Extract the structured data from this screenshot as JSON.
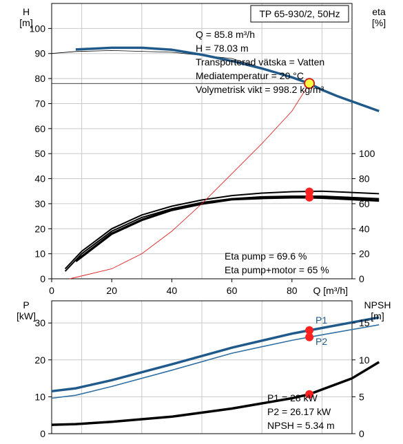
{
  "colors": {
    "head_curve": "#1f5a8a",
    "power_curve_p1": "#1f5a8a",
    "power_curve_p2": "#2f6fa3",
    "efficiency_curve": "#000000",
    "npsh_curve": "#000000",
    "system_curve": "#e02020",
    "marker_red": "#ff2020",
    "marker_yellow": "#ffff44",
    "grid": "#c8c8c8"
  },
  "chart_data": [
    {
      "type": "line",
      "id": "head_efficiency",
      "title_box": "TP 65-930/2, 50Hz",
      "xlabel": "Q [m³/h]",
      "ylabel_left": [
        "H",
        "[m]"
      ],
      "ylabel_right": [
        "eta",
        "[%]"
      ],
      "xlim": [
        0,
        100
      ],
      "ylim_left": [
        0,
        110
      ],
      "ylim_right": [
        0,
        220
      ],
      "xticks": [
        0,
        20,
        40,
        60,
        80
      ],
      "yticks_left": [
        0,
        10,
        20,
        30,
        40,
        50,
        60,
        70,
        80,
        90,
        100
      ],
      "yticks_right": [
        0,
        20,
        40,
        60,
        80,
        100
      ],
      "grid": true,
      "series": [
        {
          "key": "head_thin",
          "axis": "left",
          "x": [
            0,
            8,
            20,
            40,
            60,
            80,
            85.8
          ],
          "y": [
            90,
            90.8,
            91.2,
            90.5,
            88,
            80.5,
            78
          ]
        },
        {
          "key": "head",
          "axis": "left",
          "x": [
            8,
            20,
            30,
            40,
            50,
            60,
            70,
            80,
            85.8,
            90,
            95,
            109
          ],
          "y": [
            91.6,
            92.3,
            92.3,
            91.5,
            89.5,
            87,
            84,
            80.5,
            78.03,
            75.5,
            73,
            67
          ]
        },
        {
          "key": "eta_pump_outer",
          "axis": "right",
          "x": [
            4.5,
            10,
            20,
            30,
            40,
            50,
            60,
            70,
            80,
            90,
            109
          ],
          "y": [
            8,
            22,
            40,
            51,
            58,
            63,
            66.5,
            68.5,
            69.6,
            70,
            68
          ]
        },
        {
          "key": "eta_pump_inner",
          "axis": "right",
          "x": [
            4.5,
            10,
            20,
            30,
            40,
            50,
            60,
            70,
            80,
            90,
            109
          ],
          "y": [
            6,
            20,
            38,
            49,
            56,
            61,
            64,
            65.5,
            66,
            66,
            64
          ]
        },
        {
          "key": "eta_total",
          "axis": "right",
          "x": [
            8,
            20,
            30,
            40,
            50,
            60,
            70,
            80,
            85.8,
            90,
            109
          ],
          "y": [
            14,
            36,
            47,
            55,
            60,
            63.5,
            64.5,
            65,
            65,
            64.8,
            62.5
          ]
        },
        {
          "key": "system_curve",
          "axis": "left",
          "x": [
            6,
            20,
            30,
            40,
            50,
            60,
            70,
            80,
            85.8
          ],
          "y": [
            0,
            4,
            10,
            19,
            30,
            42,
            54,
            67,
            78
          ]
        }
      ],
      "operating_point": {
        "x": 85.8,
        "y": 78.03
      },
      "eta_markers": [
        {
          "x": 85.8,
          "y": 69.6
        },
        {
          "x": 85.8,
          "y": 65
        }
      ],
      "info_lines": [
        "Q = 85.8 m³/h",
        "H = 78.03 m",
        "Transporterad vätska = Vatten",
        "Mediatemperatur = 20 °C",
        "Volymetrisk vikt = 998.2 kg/m³"
      ],
      "eta_lines": [
        "Eta pump = 69.6 %",
        "Eta pump+motor = 65 %"
      ]
    },
    {
      "type": "line",
      "id": "power_npsh",
      "ylabel_left": [
        "P",
        "[kW]"
      ],
      "ylabel_right": [
        "NPSH",
        "[m]"
      ],
      "xlim": [
        0,
        100
      ],
      "ylim_left": [
        0,
        36
      ],
      "ylim_right": [
        0,
        18
      ],
      "yticks_left": [
        0,
        10,
        20,
        30
      ],
      "yticks_right": [
        0,
        5,
        10,
        15
      ],
      "grid": true,
      "series": [
        {
          "key": "p1",
          "name": "P1",
          "axis": "left",
          "x": [
            0,
            8,
            20,
            40,
            60,
            80,
            85.8,
            109
          ],
          "y": [
            11.5,
            12.3,
            14.5,
            18.8,
            23.3,
            27.1,
            28,
            31.5
          ]
        },
        {
          "key": "p2",
          "name": "P2",
          "axis": "left",
          "x": [
            0,
            8,
            20,
            40,
            60,
            80,
            85.8,
            109
          ],
          "y": [
            9.6,
            10.4,
            12.8,
            17.2,
            21.8,
            25.3,
            26.17,
            29.5
          ]
        },
        {
          "key": "npsh",
          "axis": "right",
          "x": [
            0,
            8,
            20,
            40,
            60,
            80,
            85.8,
            100,
            109
          ],
          "y": [
            1.2,
            1.3,
            1.6,
            2.3,
            3.4,
            4.8,
            5.34,
            7.5,
            9.7
          ]
        }
      ],
      "markers": [
        {
          "axis": "left",
          "x": 85.8,
          "y": 28
        },
        {
          "axis": "left",
          "x": 85.8,
          "y": 26.17
        },
        {
          "axis": "right",
          "x": 85.8,
          "y": 5.34
        }
      ],
      "info_lines": [
        "P1 = 28 kW",
        "P2 = 26.17 kW",
        "NPSH = 5.34 m"
      ]
    }
  ]
}
